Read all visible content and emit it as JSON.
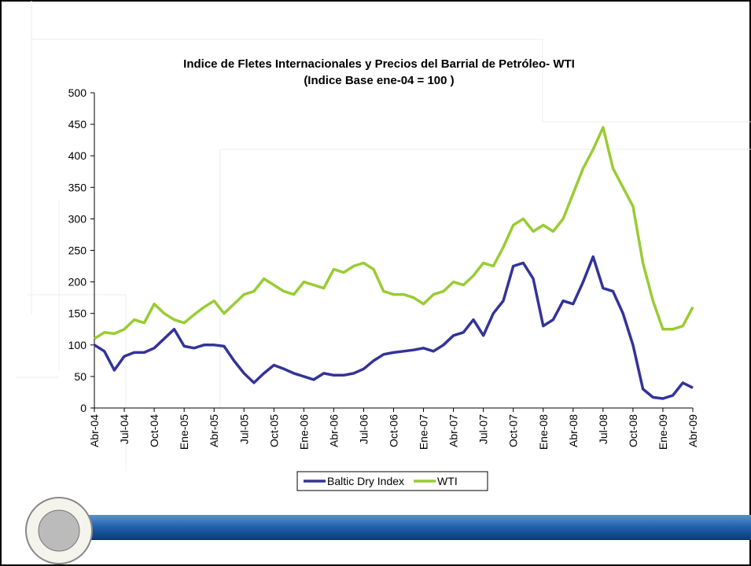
{
  "chart_data": {
    "type": "line",
    "title": "Indice de Fletes Internacionales y Precios del Barrial de Petróleo- WTI",
    "subtitle": "(Indice Base  ene-04 = 100 )",
    "categories": [
      "Abr-04",
      null,
      null,
      "Jul-04",
      null,
      null,
      "Oct-04",
      null,
      null,
      "Ene-05",
      null,
      null,
      "Abr-05",
      null,
      null,
      "Jul-05",
      null,
      null,
      "Oct-05",
      null,
      null,
      "Ene-06",
      null,
      null,
      "Abr-06",
      null,
      null,
      "Jul-06",
      null,
      null,
      "Oct-06",
      null,
      null,
      "Ene-07",
      null,
      null,
      "Abr-07",
      null,
      null,
      "Jul-07",
      null,
      null,
      "Oct-07",
      null,
      null,
      "Ene-08",
      null,
      null,
      "Abr-08",
      null,
      null,
      "Jul-08",
      null,
      null,
      "Oct-08",
      null,
      null,
      "Ene-09",
      null,
      null,
      "Abr-09"
    ],
    "series": [
      {
        "name": "Baltic Dry Index",
        "color": "#333399",
        "values": [
          100,
          90,
          60,
          82,
          88,
          88,
          95,
          110,
          125,
          98,
          95,
          100,
          100,
          98,
          75,
          55,
          40,
          55,
          68,
          62,
          55,
          50,
          45,
          55,
          52,
          52,
          55,
          62,
          75,
          85,
          88,
          90,
          92,
          95,
          90,
          100,
          115,
          120,
          140,
          115,
          150,
          170,
          225,
          230,
          205,
          130,
          140,
          170,
          165,
          200,
          240,
          190,
          185,
          150,
          100,
          30,
          17,
          15,
          20,
          40,
          32
        ]
      },
      {
        "name": "WTI",
        "color": "#99cc33",
        "values": [
          110,
          120,
          118,
          125,
          140,
          135,
          165,
          150,
          140,
          135,
          148,
          160,
          170,
          150,
          165,
          180,
          185,
          205,
          195,
          185,
          180,
          200,
          195,
          190,
          220,
          215,
          225,
          230,
          220,
          185,
          180,
          180,
          175,
          165,
          180,
          185,
          200,
          195,
          210,
          230,
          225,
          255,
          290,
          300,
          280,
          290,
          280,
          300,
          340,
          380,
          410,
          445,
          380,
          350,
          320,
          230,
          170,
          125,
          125,
          130,
          160
        ]
      }
    ],
    "ylim": [
      0,
      500
    ],
    "yticks": [
      0,
      50,
      100,
      150,
      200,
      250,
      300,
      350,
      400,
      450,
      500
    ],
    "grid": false,
    "legend": "bottom"
  }
}
